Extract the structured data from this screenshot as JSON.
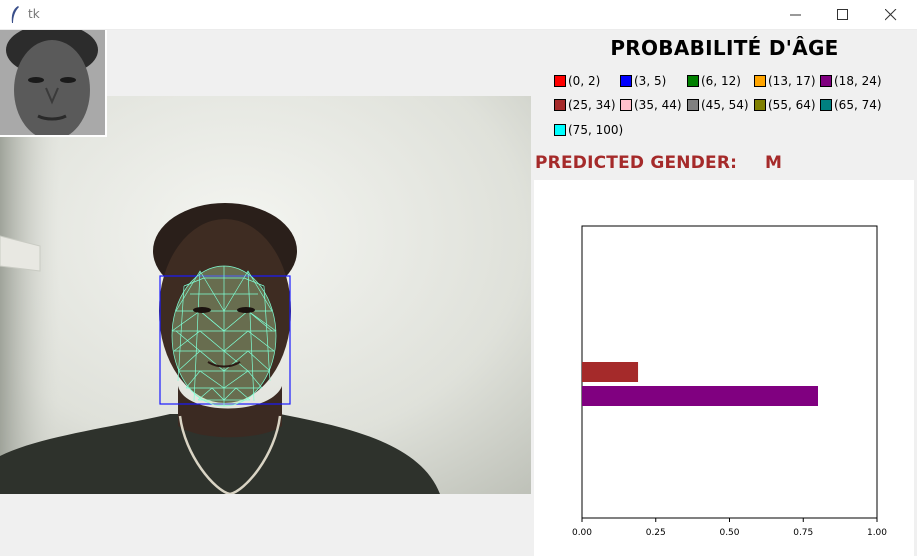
{
  "window": {
    "title": "tk",
    "icons": {
      "app": "tk-feather-icon",
      "minimize": "minimize-icon",
      "maximize": "maximize-icon",
      "close": "close-icon"
    }
  },
  "camera": {
    "thumbnail_icon": "face-thumbnail",
    "face_box_color": "#1a1aff",
    "mesh_color": "#7fffd4"
  },
  "age_panel": {
    "title": "PROBABILITÉ D'ÂGE",
    "legend": [
      {
        "label": "(0, 2)",
        "color": "#ff0000"
      },
      {
        "label": "(3, 5)",
        "color": "#0000ff"
      },
      {
        "label": "(6, 12)",
        "color": "#008000"
      },
      {
        "label": "(13, 17)",
        "color": "#ffa500"
      },
      {
        "label": "(18, 24)",
        "color": "#800080"
      },
      {
        "label": "(25, 34)",
        "color": "#a52a2a"
      },
      {
        "label": "(35, 44)",
        "color": "#ffc0cb"
      },
      {
        "label": "(45, 54)",
        "color": "#808080"
      },
      {
        "label": "(55, 64)",
        "color": "#808000"
      },
      {
        "label": "(65, 74)",
        "color": "#008080"
      },
      {
        "label": "(75, 100)",
        "color": "#00ffff"
      }
    ]
  },
  "gender": {
    "label": "PREDICTED GENDER:",
    "value": "M"
  },
  "chart_data": {
    "type": "bar",
    "orientation": "horizontal",
    "xlim": [
      0,
      1
    ],
    "xticks": [
      "0.00",
      "0.25",
      "0.50",
      "0.75",
      "1.00"
    ],
    "bars": [
      {
        "label": "(25, 34)",
        "value": 0.19,
        "color": "#a52a2a"
      },
      {
        "label": "(18, 24)",
        "value": 0.8,
        "color": "#800080"
      }
    ],
    "grid": false
  }
}
